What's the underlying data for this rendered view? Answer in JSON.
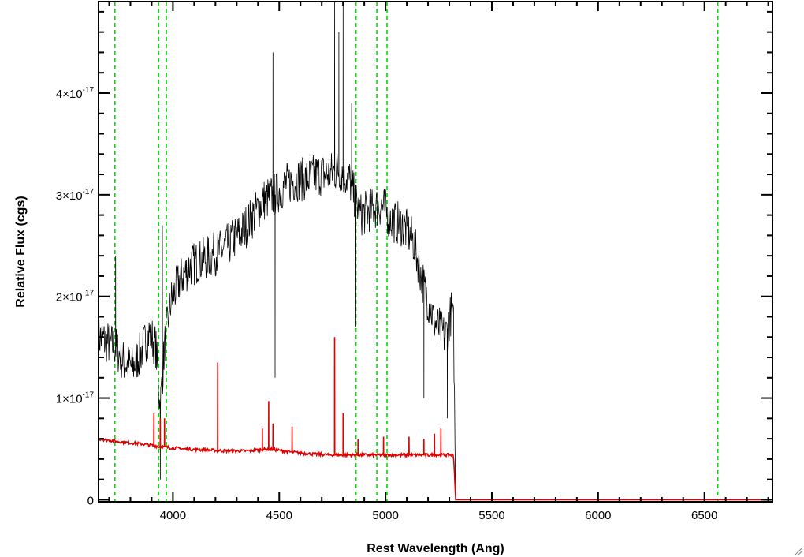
{
  "chart_data": {
    "type": "line",
    "xlabel": "Rest Wavelength (Ang)",
    "ylabel": "Relative Flux (cgs)",
    "xlim": [
      3650,
      6820
    ],
    "ylim": [
      -2e-19,
      4.9e-17
    ],
    "x_ticks": [
      {
        "value": 4000,
        "label": "4000"
      },
      {
        "value": 4500,
        "label": "4500"
      },
      {
        "value": 5000,
        "label": "5000"
      },
      {
        "value": 5500,
        "label": "5500"
      },
      {
        "value": 6000,
        "label": "6000"
      },
      {
        "value": 6500,
        "label": "6500"
      }
    ],
    "x_minor_step": 100,
    "y_ticks": [
      {
        "value": 0,
        "label": "0"
      },
      {
        "value": 1e-17,
        "label": "1×10",
        "exp": "-17"
      },
      {
        "value": 2e-17,
        "label": "2×10",
        "exp": "-17"
      },
      {
        "value": 3e-17,
        "label": "3×10",
        "exp": "-17"
      },
      {
        "value": 4e-17,
        "label": "4×10",
        "exp": "-17"
      }
    ],
    "y_minor_step": 2e-18,
    "reference_lines_x": [
      3727,
      3933,
      3969,
      4861,
      4959,
      5007,
      6563
    ],
    "reference_line_color": "#00dd00",
    "series": [
      {
        "color": "#000000",
        "x": [
          3650,
          3690,
          3730,
          3770,
          3810,
          3850,
          3890,
          3920,
          3940,
          3960,
          3990,
          4030,
          4080,
          4130,
          4180,
          4230,
          4280,
          4330,
          4380,
          4430,
          4480,
          4530,
          4580,
          4630,
          4680,
          4730,
          4780,
          4830,
          4880,
          4930,
          4980,
          5030,
          5080,
          5130,
          5180,
          5230,
          5280,
          5310,
          5320,
          5330,
          6820
        ],
        "y": [
          1.6e-17,
          1.55e-17,
          1.5e-17,
          1.35e-17,
          1.3e-17,
          1.45e-17,
          1.65e-17,
          1.5e-17,
          9e-18,
          1.5e-17,
          1.95e-17,
          2.15e-17,
          2.3e-17,
          2.35e-17,
          2.4e-17,
          2.45e-17,
          2.55e-17,
          2.65e-17,
          2.8e-17,
          2.95e-17,
          3e-17,
          3.1e-17,
          3.15e-17,
          3.15e-17,
          3.2e-17,
          3.2e-17,
          3.25e-17,
          3.15e-17,
          2.8e-17,
          2.85e-17,
          2.9e-17,
          2.75e-17,
          2.7e-17,
          2.55e-17,
          2.1e-17,
          1.75e-17,
          1.6e-17,
          1.85e-17,
          1.7e-17,
          0.0,
          0.0
        ],
        "spikes": [
          {
            "x": 3730,
            "y": 2.4e-17
          },
          {
            "x": 3940,
            "y": 2e-18
          },
          {
            "x": 3950,
            "y": 2.7e-17
          },
          {
            "x": 4470,
            "y": 4.4e-17
          },
          {
            "x": 4480,
            "y": 1.2e-17
          },
          {
            "x": 4760,
            "y": 4.9e-17
          },
          {
            "x": 4780,
            "y": 4.6e-17
          },
          {
            "x": 4800,
            "y": 4.9e-17
          },
          {
            "x": 4840,
            "y": 3.9e-17
          },
          {
            "x": 4860,
            "y": 1.7e-17
          },
          {
            "x": 5180,
            "y": 1e-17
          },
          {
            "x": 5290,
            "y": 8e-18
          }
        ]
      },
      {
        "color": "#e00000",
        "x": [
          3650,
          3750,
          3850,
          3950,
          4050,
          4150,
          4250,
          4350,
          4450,
          4550,
          4650,
          4750,
          4850,
          4950,
          5050,
          5150,
          5250,
          5320,
          5330,
          6820
        ],
        "y": [
          6e-18,
          5.7e-18,
          5.5e-18,
          5.2e-18,
          5e-18,
          4.9e-18,
          4.8e-18,
          4.8e-18,
          5e-18,
          4.7e-18,
          4.5e-18,
          4.4e-18,
          4.4e-18,
          4.4e-18,
          4.4e-18,
          4.4e-18,
          4.4e-18,
          4.4e-18,
          0.0,
          0.0
        ],
        "spikes": [
          {
            "x": 3910,
            "y": 8.5e-18
          },
          {
            "x": 3940,
            "y": 8e-18
          },
          {
            "x": 3960,
            "y": 8e-18
          },
          {
            "x": 4210,
            "y": 1.35e-17
          },
          {
            "x": 4420,
            "y": 7e-18
          },
          {
            "x": 4450,
            "y": 9.7e-18
          },
          {
            "x": 4470,
            "y": 7.5e-18
          },
          {
            "x": 4560,
            "y": 7.2e-18
          },
          {
            "x": 4760,
            "y": 1.6e-17
          },
          {
            "x": 4800,
            "y": 8.5e-18
          },
          {
            "x": 4870,
            "y": 6e-18
          },
          {
            "x": 4990,
            "y": 6.2e-18
          },
          {
            "x": 5110,
            "y": 6.2e-18
          },
          {
            "x": 5180,
            "y": 6e-18
          },
          {
            "x": 5230,
            "y": 6.5e-18
          },
          {
            "x": 5260,
            "y": 7e-18
          }
        ]
      }
    ]
  }
}
